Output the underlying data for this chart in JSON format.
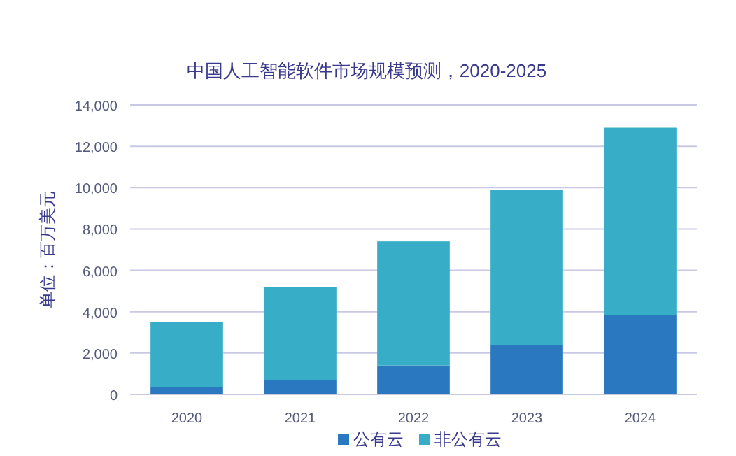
{
  "chart_data": {
    "type": "bar",
    "title": "中国人工智能软件市场规模预测，2020-2025",
    "ylabel": "单位：百万美元",
    "categories": [
      "2020",
      "2021",
      "2022",
      "2023",
      "2024"
    ],
    "stacked": true,
    "series": [
      {
        "name": "公有云",
        "color": "#2a78bf",
        "values": [
          350,
          700,
          1400,
          2400,
          3850
        ]
      },
      {
        "name": "非公有云",
        "color": "#38adc7",
        "values": [
          3150,
          4500,
          6000,
          7500,
          9050
        ]
      }
    ],
    "ylim": [
      0,
      14000
    ],
    "yticks": [
      {
        "value": 0,
        "label": "0"
      },
      {
        "value": 2000,
        "label": "2,000"
      },
      {
        "value": 4000,
        "label": "4,000"
      },
      {
        "value": 6000,
        "label": "6,000"
      },
      {
        "value": 8000,
        "label": "8,000"
      },
      {
        "value": 10000,
        "label": "10,000"
      },
      {
        "value": 12000,
        "label": "12,000"
      },
      {
        "value": 14000,
        "label": "14,000"
      }
    ],
    "grid": "y",
    "legend": "bottom"
  }
}
